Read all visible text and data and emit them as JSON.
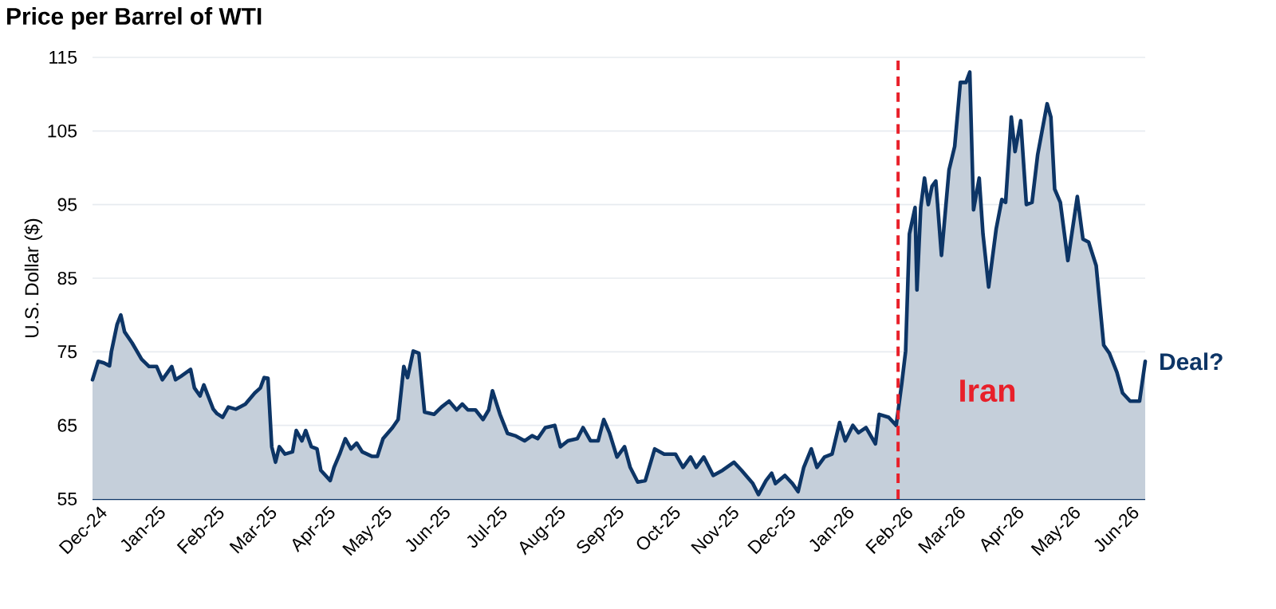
{
  "chart_data": {
    "type": "area",
    "title": "Price per Barrel of WTI",
    "ylabel": "U.S. Dollar ($)",
    "x": [
      "2024-12-01",
      "2024-12-04",
      "2024-12-07",
      "2024-12-10",
      "2024-12-11",
      "2024-12-14",
      "2024-12-16",
      "2024-12-18",
      "2024-12-22",
      "2024-12-27",
      "2024-12-31",
      "2025-01-04",
      "2025-01-07",
      "2025-01-12",
      "2025-01-14",
      "2025-01-17",
      "2025-01-22",
      "2025-01-24",
      "2025-01-27",
      "2025-01-29",
      "2025-02-03",
      "2025-02-05",
      "2025-02-08",
      "2025-02-11",
      "2025-02-15",
      "2025-02-20",
      "2025-02-25",
      "2025-02-28",
      "2025-03-02",
      "2025-03-04",
      "2025-03-06",
      "2025-03-08",
      "2025-03-10",
      "2025-03-13",
      "2025-03-17",
      "2025-03-19",
      "2025-03-22",
      "2025-03-24",
      "2025-03-27",
      "2025-03-30",
      "2025-04-01",
      "2025-04-06",
      "2025-04-08",
      "2025-04-11",
      "2025-04-14",
      "2025-04-17",
      "2025-04-20",
      "2025-04-23",
      "2025-04-28",
      "2025-05-01",
      "2025-05-04",
      "2025-05-09",
      "2025-05-12",
      "2025-05-15",
      "2025-05-17",
      "2025-05-20",
      "2025-05-23",
      "2025-05-26",
      "2025-05-31",
      "2025-06-04",
      "2025-06-08",
      "2025-06-12",
      "2025-06-15",
      "2025-06-18",
      "2025-06-22",
      "2025-06-26",
      "2025-06-29",
      "2025-07-01",
      "2025-07-05",
      "2025-07-09",
      "2025-07-13",
      "2025-07-18",
      "2025-07-22",
      "2025-07-25",
      "2025-07-29",
      "2025-08-03",
      "2025-08-06",
      "2025-08-10",
      "2025-08-15",
      "2025-08-18",
      "2025-08-22",
      "2025-08-26",
      "2025-08-29",
      "2025-09-01",
      "2025-09-05",
      "2025-09-09",
      "2025-09-12",
      "2025-09-16",
      "2025-09-20",
      "2025-09-25",
      "2025-09-30",
      "2025-10-06",
      "2025-10-10",
      "2025-10-14",
      "2025-10-17",
      "2025-10-21",
      "2025-10-26",
      "2025-10-31",
      "2025-11-06",
      "2025-11-10",
      "2025-11-16",
      "2025-11-19",
      "2025-11-23",
      "2025-11-26",
      "2025-11-28",
      "2025-12-03",
      "2025-12-07",
      "2025-12-10",
      "2025-12-13",
      "2025-12-17",
      "2025-12-20",
      "2025-12-24",
      "2025-12-28",
      "2026-01-01",
      "2026-01-04",
      "2026-01-08",
      "2026-01-11",
      "2026-01-15",
      "2026-01-20",
      "2026-01-22",
      "2026-01-27",
      "2026-01-31",
      "2026-02-03",
      "2026-02-05",
      "2026-02-07",
      "2026-02-10",
      "2026-02-11",
      "2026-02-13",
      "2026-02-15",
      "2026-02-17",
      "2026-02-19",
      "2026-02-21",
      "2026-02-24",
      "2026-02-28",
      "2026-03-03",
      "2026-03-06",
      "2026-03-09",
      "2026-03-11",
      "2026-03-13",
      "2026-03-16",
      "2026-03-18",
      "2026-03-21",
      "2026-03-25",
      "2026-03-28",
      "2026-03-30",
      "2026-04-02",
      "2026-04-04",
      "2026-04-07",
      "2026-04-10",
      "2026-04-13",
      "2026-04-16",
      "2026-04-21",
      "2026-04-23",
      "2026-04-25",
      "2026-04-28",
      "2026-05-02",
      "2026-05-07",
      "2026-05-10",
      "2026-05-13",
      "2026-05-17",
      "2026-05-21",
      "2026-05-24",
      "2026-05-28",
      "2026-05-31",
      "2026-06-04",
      "2026-06-09",
      "2026-06-12"
    ],
    "series": [
      {
        "color": "#0d3566",
        "values": [
          71.2,
          73.7,
          73.5,
          73.1,
          75,
          78.7,
          80,
          77.7,
          76.2,
          74,
          73,
          73,
          71.2,
          73,
          71.2,
          71.7,
          72.6,
          70.1,
          69,
          70.5,
          67.2,
          66.6,
          66.1,
          67.5,
          67.2,
          67.9,
          69.4,
          70.1,
          71.5,
          71.4,
          62.1,
          60,
          62.1,
          61.1,
          61.4,
          64.3,
          62.9,
          64.3,
          62.1,
          61.8,
          58.9,
          57.5,
          59.3,
          61.1,
          63.2,
          61.8,
          62.6,
          61.4,
          60.8,
          60.8,
          63.2,
          64.7,
          65.8,
          73,
          71.5,
          75.1,
          74.8,
          66.8,
          66.5,
          67.5,
          68.3,
          67.1,
          67.9,
          67.1,
          67.1,
          65.8,
          67.1,
          69.7,
          66.5,
          63.9,
          63.6,
          62.9,
          63.6,
          63.2,
          64.7,
          65,
          62.1,
          62.9,
          63.2,
          64.7,
          62.9,
          62.9,
          65.8,
          64,
          60.7,
          62.1,
          59.3,
          57.3,
          57.5,
          61.8,
          61.1,
          61.1,
          59.3,
          60.7,
          59.3,
          60.7,
          58.2,
          58.9,
          60,
          58.9,
          57.1,
          55.6,
          57.5,
          58.5,
          57.1,
          58.2,
          57.1,
          56,
          59.3,
          61.8,
          59.3,
          60.7,
          61.1,
          65.4,
          62.9,
          65,
          64,
          64.7,
          62.5,
          66.5,
          66.1,
          65,
          70.8,
          75.1,
          91,
          94.6,
          83.4,
          94.6,
          98.6,
          95,
          97.5,
          98.2,
          88.1,
          99.7,
          102.9,
          111.6,
          111.6,
          113,
          94.3,
          98.6,
          91,
          83.8,
          91.7,
          95.7,
          95.3,
          106.9,
          102.2,
          106.4,
          95,
          95.3,
          101.8,
          108.7,
          106.9,
          97.1,
          95.3,
          87.4,
          96.1,
          90.3,
          89.9,
          86.7,
          75.9,
          74.8,
          72.2,
          69.4,
          68.3,
          68.3,
          73.7
        ]
      }
    ],
    "xlim": [
      "2024-12-01",
      "2026-06-12"
    ],
    "xticks": [
      {
        "value": "2024-12-01",
        "label": "Dec-24"
      },
      {
        "value": "2025-01-01",
        "label": "Jan-25"
      },
      {
        "value": "2025-02-01",
        "label": "Feb-25"
      },
      {
        "value": "2025-03-01",
        "label": "Mar-25"
      },
      {
        "value": "2025-04-01",
        "label": "Apr-25"
      },
      {
        "value": "2025-05-01",
        "label": "May-25"
      },
      {
        "value": "2025-06-01",
        "label": "Jun-25"
      },
      {
        "value": "2025-07-01",
        "label": "Jul-25"
      },
      {
        "value": "2025-08-01",
        "label": "Aug-25"
      },
      {
        "value": "2025-09-01",
        "label": "Sep-25"
      },
      {
        "value": "2025-10-01",
        "label": "Oct-25"
      },
      {
        "value": "2025-11-01",
        "label": "Nov-25"
      },
      {
        "value": "2025-12-01",
        "label": "Dec-25"
      },
      {
        "value": "2026-01-01",
        "label": "Jan-26"
      },
      {
        "value": "2026-02-01",
        "label": "Feb-26"
      },
      {
        "value": "2026-03-01",
        "label": "Mar-26"
      },
      {
        "value": "2026-04-01",
        "label": "Apr-26"
      },
      {
        "value": "2026-05-01",
        "label": "May-26"
      },
      {
        "value": "2026-06-01",
        "label": "Jun-26"
      }
    ],
    "ylim": [
      55,
      115
    ],
    "yticks": [
      55,
      65,
      75,
      85,
      95,
      105,
      115
    ],
    "grid": "y",
    "ref_lines": [
      {
        "axis": "x",
        "value": "2026-02-01",
        "color": "#e8202a",
        "line_style": "dashed"
      }
    ],
    "annotations": [
      "Iran",
      {
        "text": "Deal?",
        "x": "2026-06-12",
        "y": 73.7
      }
    ]
  }
}
